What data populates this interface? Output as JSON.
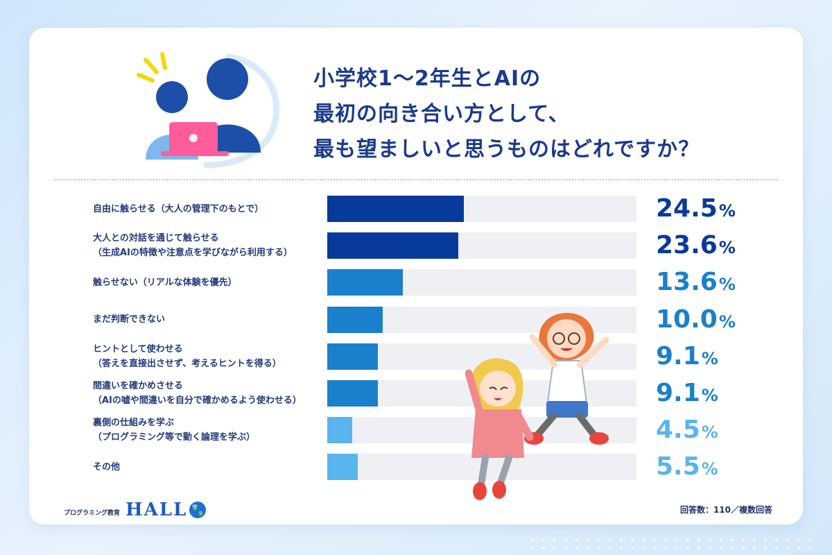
{
  "title_lines": [
    "小学校1〜2年生とAIの",
    "最初の向き合い方として、",
    "最も望ましいと思うものはどれですか？"
  ],
  "logo": {
    "subtitle": "プログラミング教育",
    "name": "HALL"
  },
  "footnote": "回答数：110／複数回答",
  "colors": {
    "dark": "#083a9c",
    "mid": "#1b80cc",
    "light": "#5ab4ee",
    "track": "#eff0f4"
  },
  "chart_data": {
    "type": "bar",
    "orientation": "horizontal",
    "xlim": [
      0,
      100
    ],
    "grid": false,
    "categories": [
      [
        "自由に触らせる（大人の管理下のもとで）"
      ],
      [
        "大人との対話を通じて触らせる",
        "（生成AIの特徴や注意点を学びながら利用する）"
      ],
      [
        "触らせない（リアルな体験を優先）"
      ],
      [
        "まだ判断できない"
      ],
      [
        "ヒントとして使わせる",
        "（答えを直接出させず、考えるヒントを得る）"
      ],
      [
        "間違いを確かめさせる",
        "（AIの嘘や間違いを自分で確かめるよう使わせる）"
      ],
      [
        "裏側の仕組みを学ぶ",
        "（プログラミング等で動く論理を学ぶ）"
      ],
      [
        "その他"
      ]
    ],
    "values": [
      24.5,
      23.6,
      13.6,
      10.0,
      9.1,
      9.1,
      4.5,
      5.5
    ],
    "value_labels": [
      "24.5",
      "23.6",
      "13.6",
      "10.0",
      "9.1",
      "9.1",
      "4.5",
      "5.5"
    ],
    "unit": "%",
    "tones": [
      "dark",
      "dark",
      "mid",
      "mid",
      "mid",
      "mid",
      "light",
      "light"
    ]
  }
}
